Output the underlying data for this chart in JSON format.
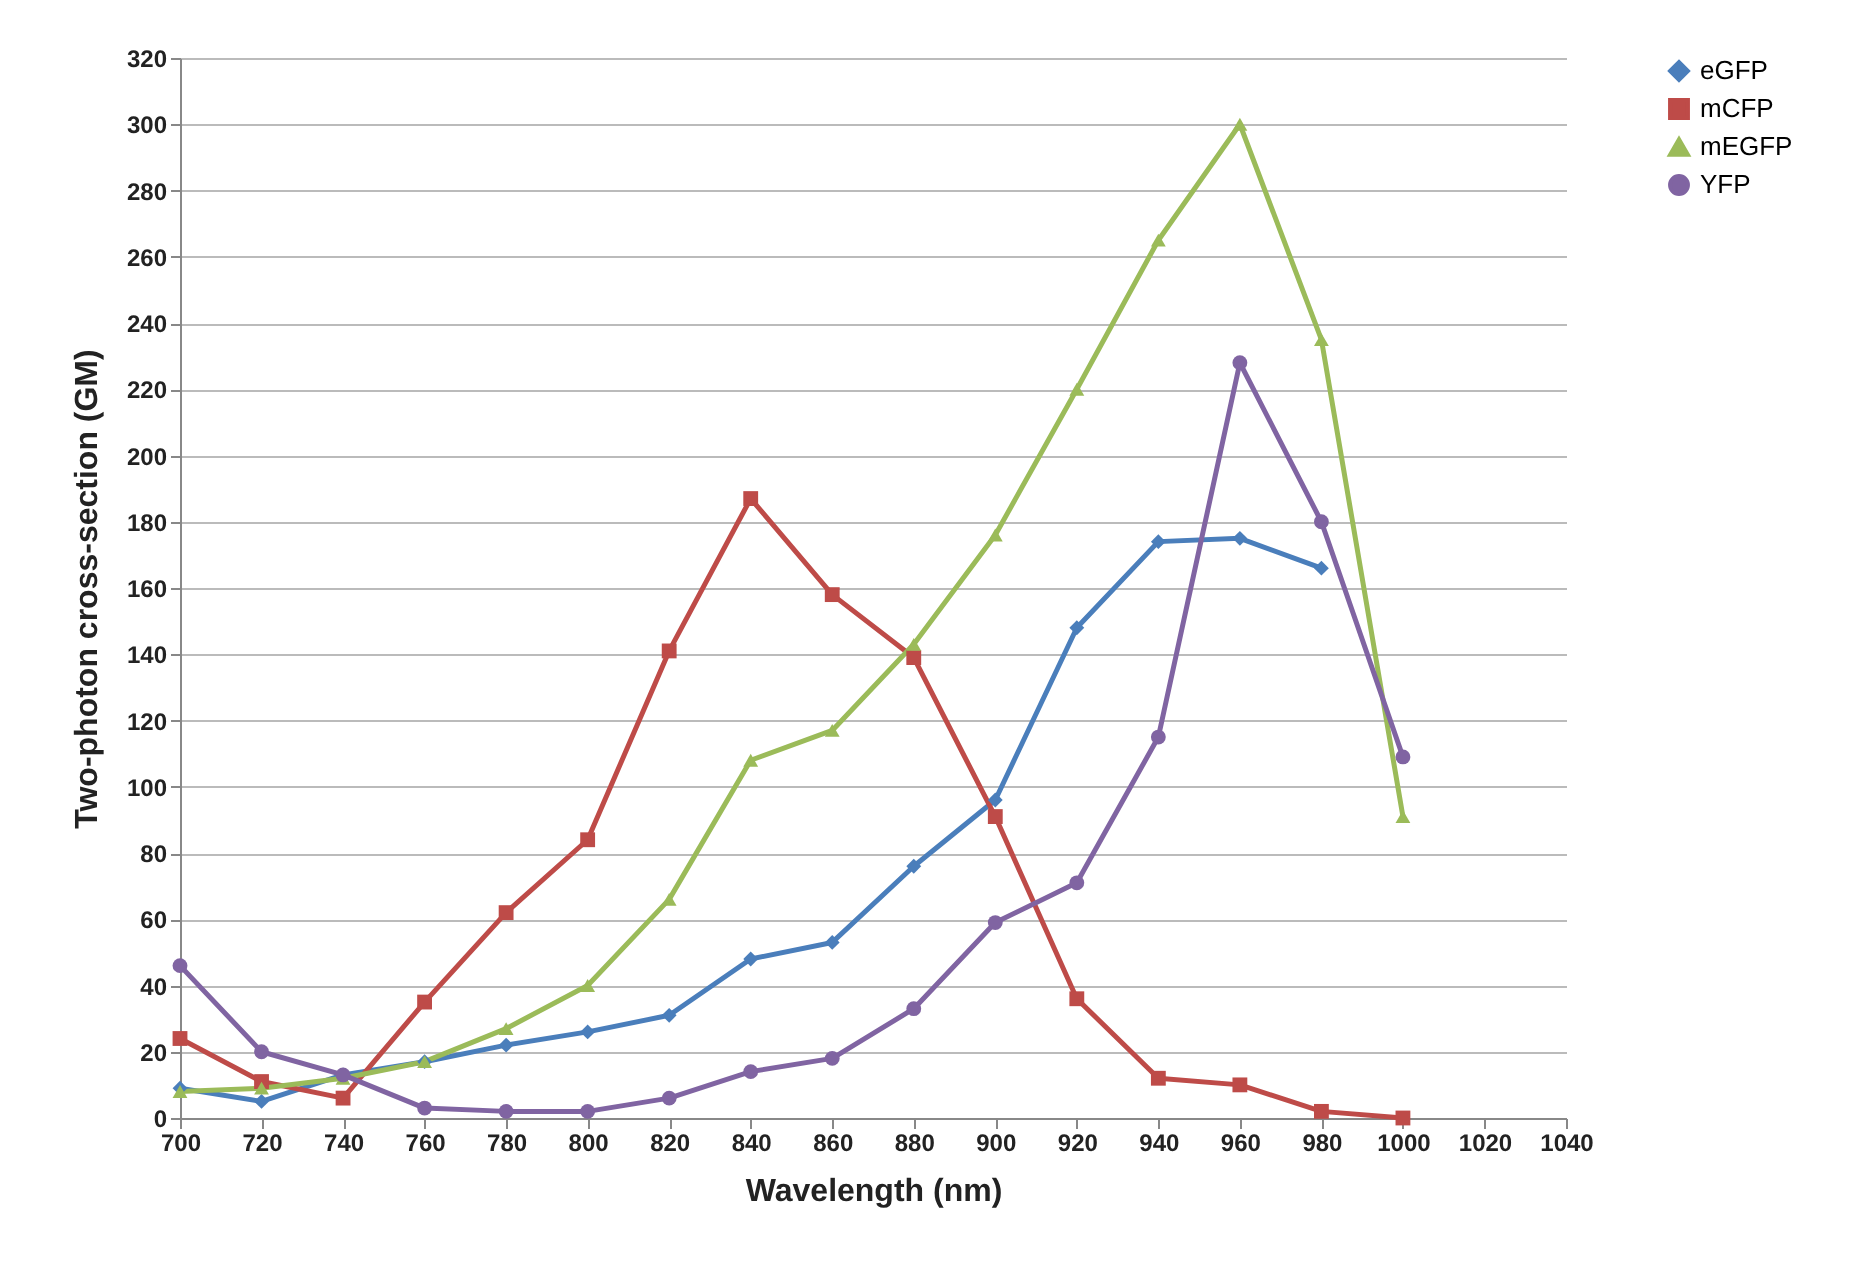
{
  "chart_data": {
    "type": "line",
    "xlabel": "Wavelength (nm)",
    "ylabel": "Two-photon cross-section (GM)",
    "x": [
      700,
      720,
      740,
      760,
      780,
      800,
      820,
      840,
      860,
      880,
      900,
      920,
      940,
      960,
      980,
      1000
    ],
    "series": [
      {
        "name": "eGFP",
        "color": "#4a7ebb",
        "marker": "diamond",
        "values": [
          9,
          5,
          13,
          17,
          22,
          26,
          31,
          48,
          53,
          76,
          96,
          148,
          174,
          175,
          166,
          null
        ]
      },
      {
        "name": "mCFP",
        "color": "#be4b48",
        "marker": "square",
        "values": [
          24,
          11,
          6,
          35,
          62,
          84,
          141,
          187,
          158,
          139,
          91,
          36,
          12,
          10,
          2,
          0
        ]
      },
      {
        "name": "mEGFP",
        "color": "#9bbb59",
        "marker": "triangle",
        "values": [
          8,
          9,
          12,
          17,
          27,
          40,
          66,
          108,
          117,
          143,
          176,
          220,
          265,
          300,
          235,
          91
        ]
      },
      {
        "name": "YFP",
        "color": "#8064a2",
        "marker": "circle",
        "values": [
          46,
          20,
          13,
          3,
          2,
          2,
          6,
          14,
          18,
          33,
          59,
          71,
          115,
          228,
          180,
          109
        ]
      }
    ],
    "xlim": [
      700,
      1040
    ],
    "xticks": [
      700,
      720,
      740,
      760,
      780,
      800,
      820,
      840,
      860,
      880,
      900,
      920,
      940,
      960,
      980,
      1000,
      1020,
      1040
    ],
    "ylim": [
      0,
      320
    ],
    "yticks": [
      0,
      20,
      40,
      60,
      80,
      100,
      120,
      140,
      160,
      180,
      200,
      220,
      240,
      260,
      280,
      300,
      320
    ],
    "grid": "y",
    "legend": "right"
  }
}
